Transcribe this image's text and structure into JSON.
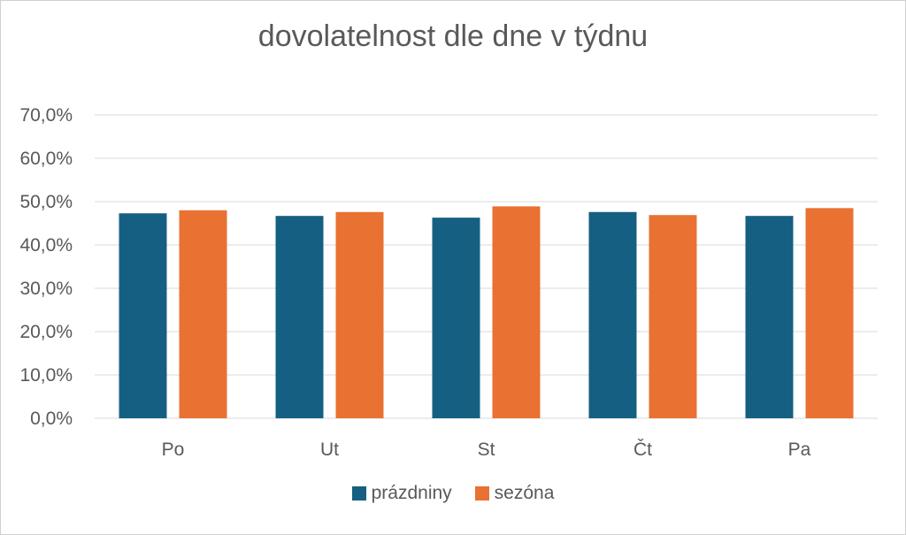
{
  "chart_data": {
    "type": "bar",
    "title": "dovolatelnost dle dne v týdnu",
    "categories": [
      "Po",
      "Ut",
      "St",
      "Čt",
      "Pa"
    ],
    "series": [
      {
        "name": "prázdniny",
        "color": "#156082",
        "values": [
          47.3,
          46.7,
          46.3,
          47.6,
          46.7
        ]
      },
      {
        "name": "sezóna",
        "color": "#E97132",
        "values": [
          48.0,
          47.6,
          48.9,
          46.9,
          48.5
        ]
      }
    ],
    "yticks": [
      "0,0%",
      "10,0%",
      "20,0%",
      "30,0%",
      "40,0%",
      "50,0%",
      "60,0%",
      "70,0%"
    ],
    "ylim": [
      0,
      70
    ],
    "grid": true,
    "legend_position": "bottom"
  }
}
